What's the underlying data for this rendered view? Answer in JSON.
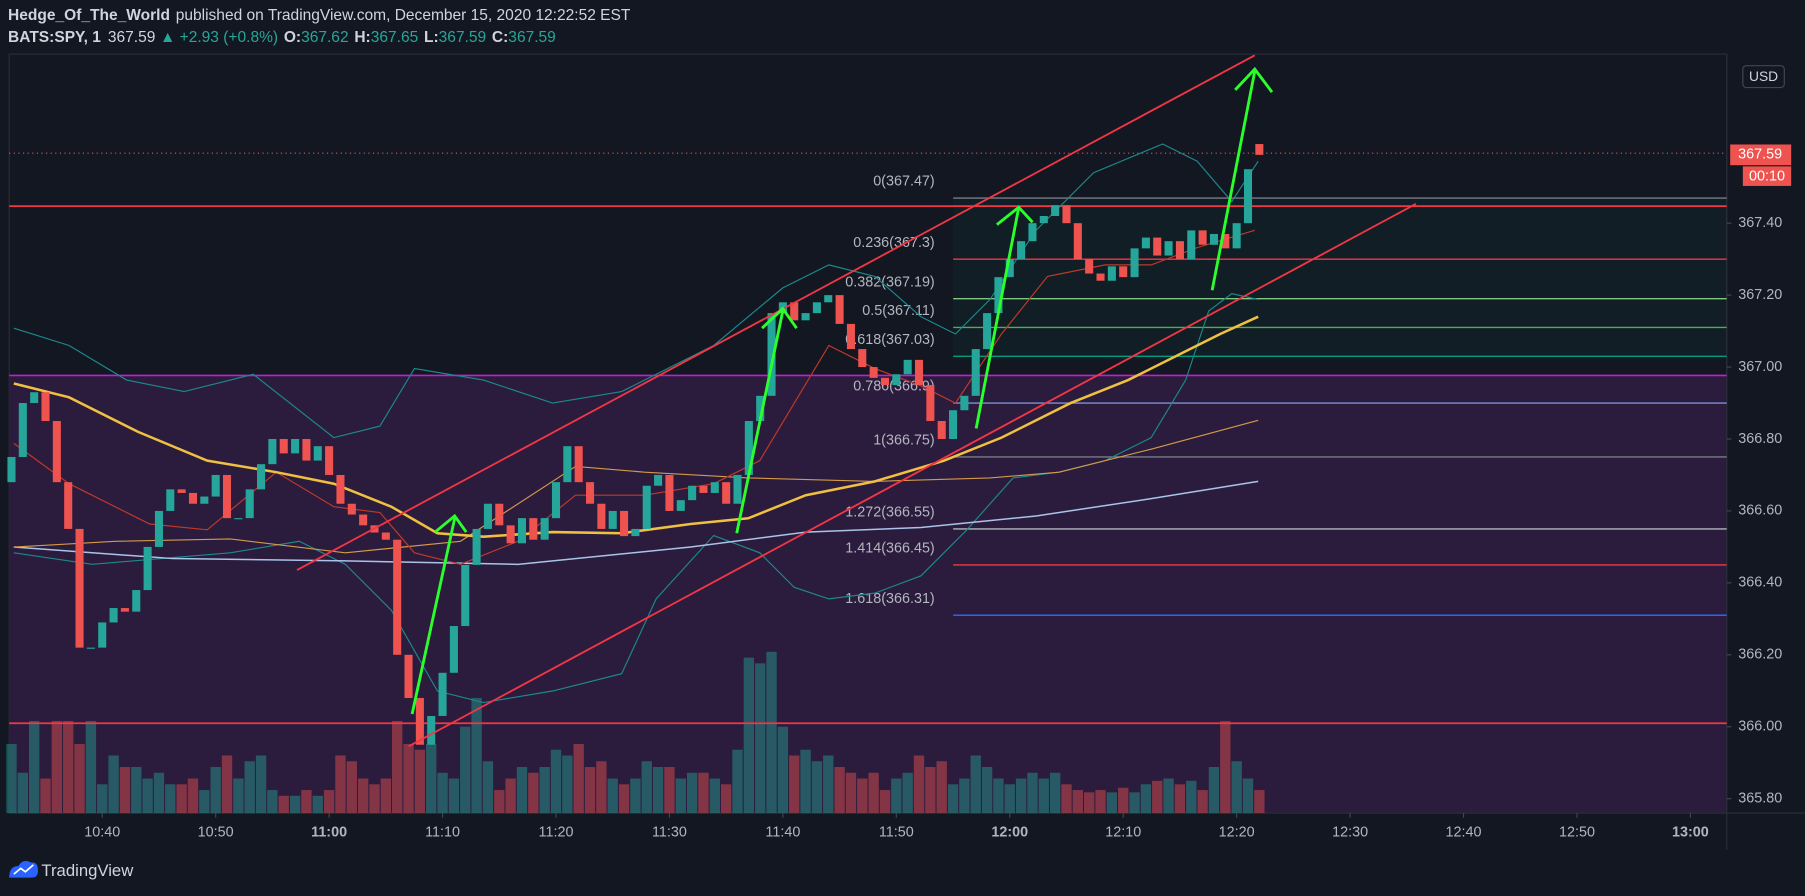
{
  "header": {
    "author": "Hedge_Of_The_World",
    "published": "published on TradingView.com, December 15, 2020 12:22:52 EST",
    "symbol": "BATS:SPY, 1",
    "last": "367.59",
    "change": "▲ +2.93 (+0.8%)",
    "o_label": "O:",
    "o": "367.62",
    "h_label": "H:",
    "h": "367.65",
    "l_label": "L:",
    "l": "367.59",
    "c_label": "C:",
    "c": "367.59"
  },
  "chart_data": {
    "type": "candlestick",
    "currency": "USD",
    "countdown": "00:10",
    "last_price": 367.59,
    "x": [
      632,
      633,
      634,
      635,
      636,
      637,
      638,
      639,
      640,
      641,
      642,
      643,
      644,
      645,
      646,
      647,
      648,
      649,
      650,
      651,
      652,
      653,
      654,
      655,
      656,
      657,
      658,
      659,
      660,
      661,
      662,
      663,
      664,
      665,
      666,
      667,
      668,
      669,
      670,
      671,
      672,
      673,
      674,
      675,
      676,
      677,
      678,
      679,
      680,
      681,
      682,
      683,
      684,
      685,
      686,
      687,
      688,
      689,
      690,
      691,
      692,
      693,
      694,
      695,
      696,
      697,
      698,
      699,
      700,
      701,
      702,
      703,
      704,
      705,
      706,
      707,
      708,
      709,
      710,
      711,
      712,
      713,
      714,
      715,
      716,
      717,
      718,
      719,
      720,
      721,
      722,
      723,
      724,
      725,
      726,
      727,
      728,
      729,
      730,
      731,
      732,
      733,
      734,
      735,
      736,
      737,
      738,
      739,
      740,
      741,
      742
    ],
    "open": [
      366.68,
      366.75,
      366.9,
      366.93,
      366.85,
      366.68,
      366.55,
      366.22,
      366.22,
      366.29,
      366.33,
      366.32,
      366.38,
      366.5,
      366.6,
      366.66,
      366.65,
      366.62,
      366.64,
      366.7,
      366.58,
      366.58,
      366.66,
      366.73,
      366.8,
      366.76,
      366.8,
      366.74,
      366.78,
      366.7,
      366.62,
      366.59,
      366.56,
      366.54,
      366.52,
      366.2,
      366.08,
      365.95,
      366.03,
      366.15,
      366.28,
      366.45,
      366.55,
      366.62,
      366.56,
      366.51,
      366.58,
      366.52,
      366.58,
      366.68,
      366.78,
      366.68,
      366.62,
      366.55,
      366.6,
      366.53,
      366.55,
      366.67,
      366.7,
      366.6,
      366.63,
      366.67,
      366.65,
      366.68,
      366.62,
      366.7,
      366.85,
      366.92,
      367.15,
      367.18,
      367.13,
      367.15,
      367.18,
      367.2,
      367.12,
      367.05,
      367.0,
      366.97,
      366.95,
      366.98,
      367.02,
      366.95,
      366.85,
      366.8,
      366.88,
      366.92,
      367.05,
      367.15,
      367.25,
      367.3,
      367.35,
      367.4,
      367.42,
      367.45,
      367.4,
      367.3,
      367.26,
      367.24,
      367.28,
      367.25,
      367.33,
      367.36,
      367.31,
      367.35,
      367.3,
      367.38,
      367.34,
      367.37,
      367.33,
      367.4,
      367.62
    ],
    "close": [
      366.75,
      366.9,
      366.93,
      366.85,
      366.68,
      366.55,
      366.22,
      366.22,
      366.29,
      366.33,
      366.32,
      366.38,
      366.5,
      366.6,
      366.66,
      366.65,
      366.62,
      366.64,
      366.7,
      366.58,
      366.58,
      366.66,
      366.73,
      366.8,
      366.76,
      366.8,
      366.74,
      366.78,
      366.7,
      366.62,
      366.59,
      366.56,
      366.54,
      366.52,
      366.2,
      366.08,
      365.95,
      366.03,
      366.15,
      366.28,
      366.45,
      366.55,
      366.62,
      366.56,
      366.51,
      366.58,
      366.52,
      366.58,
      366.68,
      366.78,
      366.68,
      366.62,
      366.55,
      366.6,
      366.53,
      366.55,
      366.67,
      366.7,
      366.6,
      366.63,
      366.67,
      366.65,
      366.68,
      366.62,
      366.7,
      366.85,
      366.92,
      367.15,
      367.18,
      367.13,
      367.15,
      367.18,
      367.2,
      367.12,
      367.05,
      367.0,
      366.97,
      366.95,
      366.98,
      367.02,
      366.95,
      366.85,
      366.8,
      366.88,
      366.92,
      367.05,
      367.15,
      367.25,
      367.3,
      367.35,
      367.4,
      367.42,
      367.45,
      367.4,
      367.3,
      367.26,
      367.24,
      367.28,
      367.25,
      367.33,
      367.36,
      367.31,
      367.35,
      367.3,
      367.38,
      367.34,
      367.37,
      367.33,
      367.4,
      367.55,
      367.59
    ],
    "volume": [
      60,
      35,
      80,
      30,
      80,
      80,
      60,
      80,
      25,
      50,
      40,
      40,
      30,
      35,
      25,
      25,
      30,
      20,
      40,
      50,
      30,
      45,
      50,
      20,
      15,
      15,
      20,
      15,
      20,
      50,
      45,
      30,
      25,
      30,
      80,
      60,
      55,
      60,
      35,
      30,
      75,
      100,
      45,
      20,
      30,
      40,
      35,
      40,
      55,
      50,
      60,
      40,
      45,
      30,
      25,
      30,
      45,
      40,
      40,
      30,
      35,
      35,
      30,
      25,
      55,
      135,
      130,
      140,
      75,
      50,
      55,
      45,
      50,
      40,
      35,
      30,
      35,
      20,
      30,
      35,
      50,
      40,
      45,
      25,
      30,
      50,
      40,
      30,
      25,
      30,
      35,
      30,
      35,
      25,
      20,
      18,
      20,
      18,
      22,
      18,
      25,
      28,
      30,
      25,
      28,
      20,
      40,
      80,
      45,
      30,
      20
    ],
    "up_color": "#26a69a",
    "down_color": "#ef5350",
    "xlim": [
      631.8,
      783.2
    ],
    "ylim": [
      365.76,
      367.87
    ],
    "xticks": [
      {
        "value": 640,
        "label": "10:40"
      },
      {
        "value": 650,
        "label": "10:50"
      },
      {
        "value": 660,
        "label": "11:00"
      },
      {
        "value": 670,
        "label": "11:10"
      },
      {
        "value": 680,
        "label": "11:20"
      },
      {
        "value": 690,
        "label": "11:30"
      },
      {
        "value": 700,
        "label": "11:40"
      },
      {
        "value": 710,
        "label": "11:50"
      },
      {
        "value": 720,
        "label": "12:00"
      },
      {
        "value": 730,
        "label": "12:10"
      },
      {
        "value": 740,
        "label": "12:20"
      },
      {
        "value": 750,
        "label": "12:30"
      },
      {
        "value": 760,
        "label": "12:40"
      },
      {
        "value": 770,
        "label": "12:50"
      },
      {
        "value": 780,
        "label": "13:00"
      }
    ],
    "yticks": [
      {
        "value": 365.8,
        "label": "365.80"
      },
      {
        "value": 366,
        "label": "366.00"
      },
      {
        "value": 366.2,
        "label": "366.20"
      },
      {
        "value": 366.4,
        "label": "366.40"
      },
      {
        "value": 366.6,
        "label": "366.60"
      },
      {
        "value": 366.8,
        "label": "366.80"
      },
      {
        "value": 367,
        "label": "367.00"
      },
      {
        "value": 367.2,
        "label": "367.20"
      },
      {
        "value": 367.4,
        "label": "367.40"
      }
    ],
    "fib_levels": [
      {
        "value": 367.47,
        "label": "0(367.47)",
        "color": "#787b86"
      },
      {
        "value": 367.3,
        "label": "0.236(367.3)",
        "color": "#f23645"
      },
      {
        "value": 367.19,
        "label": "0.382(367.19)",
        "color": "#81c784"
      },
      {
        "value": 367.11,
        "label": "0.5(367.11)",
        "color": "#4caf50"
      },
      {
        "value": 367.03,
        "label": "0.618(367.03)",
        "color": "#089981"
      },
      {
        "value": 366.9,
        "label": "0.786(366.9)",
        "color": "#7e8ed8"
      },
      {
        "value": 366.75,
        "label": "1(366.75)",
        "color": "#787b86"
      },
      {
        "value": 366.55,
        "label": "1.272(366.55)",
        "color": "#b2b5be"
      },
      {
        "value": 366.45,
        "label": "1.414(366.45)",
        "color": "#f23645"
      },
      {
        "value": 366.31,
        "label": "1.618(366.31)",
        "color": "#2962ff"
      }
    ]
  },
  "footer": {
    "brand": "TradingView"
  }
}
